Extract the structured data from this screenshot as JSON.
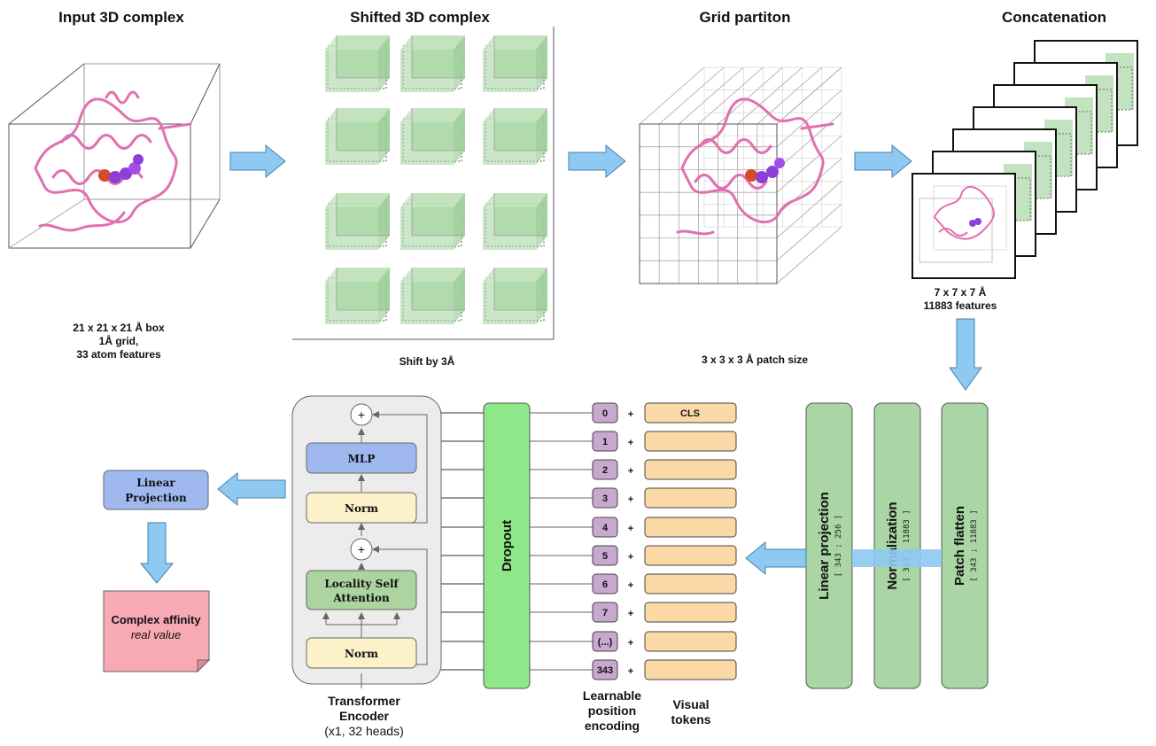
{
  "titles": {
    "input": "Input 3D complex",
    "shifted": "Shifted 3D complex",
    "grid": "Grid partiton",
    "concat": "Concatenation"
  },
  "captions": {
    "input_line1": "21 x 21 x 21 Å box",
    "input_line2": "1Å grid,",
    "input_line3": "33 atom features",
    "shift": "Shift by 3Å",
    "patch": "3 x 3 x 3 Å patch size",
    "concat_line1": "7 x 7 x 7 Å",
    "concat_line2": "11883 features"
  },
  "pipeline": {
    "patch_flatten": "Patch flatten",
    "patch_flatten_dims": "[ 343 ; 11883 ]",
    "normalization": "Normalization",
    "normalization_dims": "[ 343 ; 11883 ]",
    "linear_projection": "Linear projection",
    "linear_projection_dims": "[ 343 ; 256 ]",
    "dropout": "Dropout"
  },
  "tokens": {
    "positions": [
      "0",
      "1",
      "2",
      "3",
      "4",
      "5",
      "6",
      "7",
      "(...)",
      "343"
    ],
    "plus": "+",
    "cls": "CLS",
    "position_label": [
      "Learnable",
      "position",
      "encoding"
    ],
    "visual_label": [
      "Visual",
      "tokens"
    ]
  },
  "encoder": {
    "mlp": "MLP",
    "norm_top": "Norm",
    "attention_line1": "Locality Self",
    "attention_line2": "Attention",
    "norm_bottom": "Norm",
    "plus": "+",
    "label_line1": "Transformer",
    "label_line2": "Encoder",
    "label_line3": "(x1, 32 heads)"
  },
  "output": {
    "linear_line1": "Linear",
    "linear_line2": "Projection",
    "affinity_line1": "Complex affinity",
    "affinity_line2": "real value"
  },
  "colors": {
    "arrow": "#8ec9f2",
    "green_block": "#a9d6a4",
    "dropout": "#8ee88a",
    "position": "#c7a9cf",
    "token": "#fbd9a6",
    "mlp": "#9fb9ef",
    "norm": "#fdf1c9",
    "attention": "#acd3a0",
    "affinity": "#f7aab3",
    "protein": "#e26fb0",
    "ligand": "#8e3fd8"
  }
}
